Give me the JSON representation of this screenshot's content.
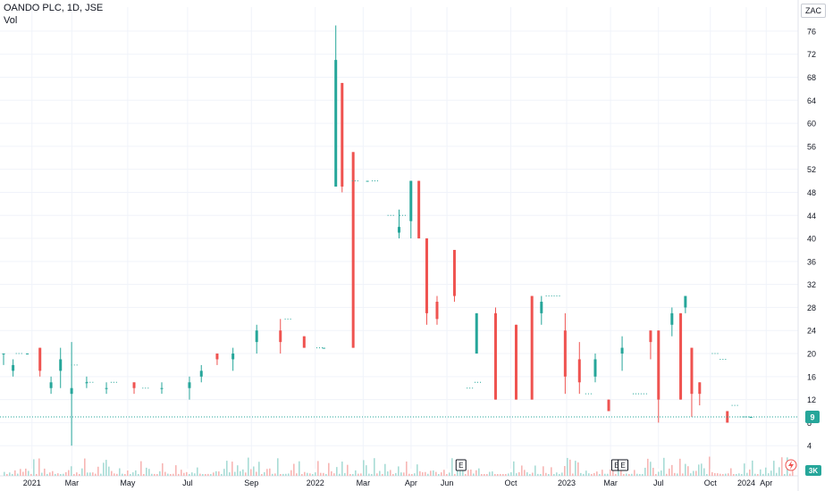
{
  "header": {
    "symbol_line": "OANDO PLC, 1D, JSE",
    "volume_label": "Vol",
    "currency": "ZAC"
  },
  "chart_data": {
    "type": "candlestick",
    "symbol": "OANDO PLC",
    "interval": "1D",
    "exchange": "JSE",
    "ylim": [
      0,
      78
    ],
    "y_ticks": [
      4,
      8,
      12,
      16,
      20,
      24,
      28,
      32,
      36,
      40,
      44,
      48,
      52,
      56,
      60,
      64,
      68,
      72,
      76
    ],
    "x_ticks": [
      "2021",
      "Mar",
      "May",
      "Jul",
      "Sep",
      "2022",
      "Mar",
      "Apr",
      "Jun",
      "Oct",
      "2023",
      "Mar",
      "Jul",
      "Oct",
      "2024",
      "Apr"
    ],
    "last_price": 9,
    "last_price_label": "9",
    "volume_label_badge": "3K",
    "grid": true,
    "colors": {
      "up": "#26a69a",
      "down": "#ef5350",
      "price_line": "#26a69a"
    },
    "earnings_markers": [
      "E",
      "E",
      "E"
    ],
    "candles": [
      {
        "t": 0.0,
        "o": 20,
        "h": 20,
        "l": 18,
        "c": 20
      },
      {
        "t": 0.012,
        "o": 17,
        "h": 19,
        "l": 16,
        "c": 18
      },
      {
        "t": 0.03,
        "o": 20,
        "h": 20,
        "l": 20,
        "c": 20
      },
      {
        "t": 0.046,
        "o": 21,
        "h": 21,
        "l": 16,
        "c": 17
      },
      {
        "t": 0.06,
        "o": 14,
        "h": 16,
        "l": 13,
        "c": 15
      },
      {
        "t": 0.072,
        "o": 17,
        "h": 21,
        "l": 14,
        "c": 19
      },
      {
        "t": 0.086,
        "o": 13,
        "h": 22,
        "l": 4,
        "c": 14
      },
      {
        "t": 0.105,
        "o": 15,
        "h": 16,
        "l": 14,
        "c": 15
      },
      {
        "t": 0.13,
        "o": 14,
        "h": 15,
        "l": 13,
        "c": 14
      },
      {
        "t": 0.165,
        "o": 15,
        "h": 15,
        "l": 13,
        "c": 14
      },
      {
        "t": 0.2,
        "o": 14,
        "h": 15,
        "l": 13,
        "c": 14
      },
      {
        "t": 0.235,
        "o": 14,
        "h": 16,
        "l": 12,
        "c": 15
      },
      {
        "t": 0.25,
        "o": 16,
        "h": 18,
        "l": 15,
        "c": 17
      },
      {
        "t": 0.27,
        "o": 20,
        "h": 20,
        "l": 18,
        "c": 19
      },
      {
        "t": 0.29,
        "o": 19,
        "h": 21,
        "l": 17,
        "c": 20
      },
      {
        "t": 0.32,
        "o": 22,
        "h": 25,
        "l": 20,
        "c": 24
      },
      {
        "t": 0.35,
        "o": 24,
        "h": 26,
        "l": 20,
        "c": 22
      },
      {
        "t": 0.38,
        "o": 23,
        "h": 23,
        "l": 21,
        "c": 21
      },
      {
        "t": 0.405,
        "o": 21,
        "h": 21,
        "l": 21,
        "c": 21
      },
      {
        "t": 0.42,
        "o": 49,
        "h": 77,
        "l": 49,
        "c": 71
      },
      {
        "t": 0.428,
        "o": 67,
        "h": 67,
        "l": 48,
        "c": 49
      },
      {
        "t": 0.442,
        "o": 55,
        "h": 55,
        "l": 21,
        "c": 21
      },
      {
        "t": 0.46,
        "o": 50,
        "h": 50,
        "l": 50,
        "c": 50
      },
      {
        "t": 0.5,
        "o": 41,
        "h": 45,
        "l": 40,
        "c": 42
      },
      {
        "t": 0.515,
        "o": 43,
        "h": 50,
        "l": 40,
        "c": 50
      },
      {
        "t": 0.525,
        "o": 50,
        "h": 50,
        "l": 40,
        "c": 40
      },
      {
        "t": 0.535,
        "o": 40,
        "h": 40,
        "l": 25,
        "c": 27
      },
      {
        "t": 0.548,
        "o": 29,
        "h": 30,
        "l": 25,
        "c": 26
      },
      {
        "t": 0.57,
        "o": 38,
        "h": 38,
        "l": 29,
        "c": 30
      },
      {
        "t": 0.598,
        "o": 20,
        "h": 27,
        "l": 20,
        "c": 27
      },
      {
        "t": 0.622,
        "o": 27,
        "h": 28,
        "l": 12,
        "c": 12
      },
      {
        "t": 0.648,
        "o": 25,
        "h": 25,
        "l": 12,
        "c": 12
      },
      {
        "t": 0.668,
        "o": 30,
        "h": 30,
        "l": 12,
        "c": 12
      },
      {
        "t": 0.68,
        "o": 27,
        "h": 30,
        "l": 25,
        "c": 29
      },
      {
        "t": 0.71,
        "o": 24,
        "h": 27,
        "l": 13,
        "c": 16
      },
      {
        "t": 0.728,
        "o": 19,
        "h": 22,
        "l": 13,
        "c": 15
      },
      {
        "t": 0.748,
        "o": 16,
        "h": 20,
        "l": 15,
        "c": 19
      },
      {
        "t": 0.765,
        "o": 12,
        "h": 12,
        "l": 10,
        "c": 10
      },
      {
        "t": 0.782,
        "o": 20,
        "h": 23,
        "l": 17,
        "c": 21
      },
      {
        "t": 0.818,
        "o": 24,
        "h": 24,
        "l": 19,
        "c": 22
      },
      {
        "t": 0.828,
        "o": 24,
        "h": 24,
        "l": 8,
        "c": 12
      },
      {
        "t": 0.845,
        "o": 25,
        "h": 28,
        "l": 23,
        "c": 27
      },
      {
        "t": 0.856,
        "o": 27,
        "h": 27,
        "l": 12,
        "c": 12
      },
      {
        "t": 0.862,
        "o": 28,
        "h": 30,
        "l": 27,
        "c": 30
      },
      {
        "t": 0.87,
        "o": 21,
        "h": 21,
        "l": 9,
        "c": 13
      },
      {
        "t": 0.88,
        "o": 15,
        "h": 15,
        "l": 11,
        "c": 13
      },
      {
        "t": 0.915,
        "o": 10,
        "h": 10,
        "l": 8,
        "c": 8
      },
      {
        "t": 0.945,
        "o": 9,
        "h": 9,
        "l": 9,
        "c": 9
      }
    ]
  }
}
